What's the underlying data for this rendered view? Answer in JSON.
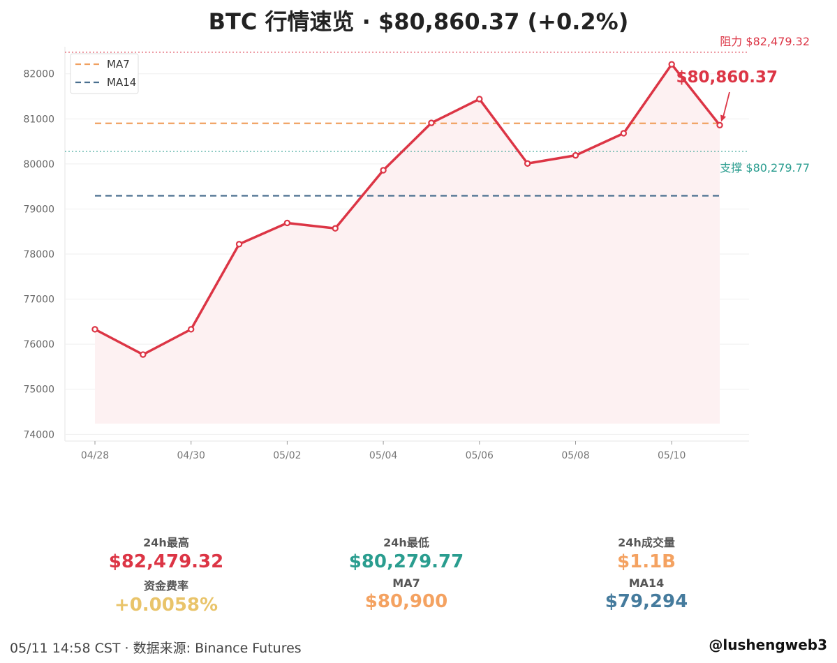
{
  "header": {
    "title": "BTC 行情速览 · $80,860.37 (+0.2%)"
  },
  "chart_data": {
    "type": "line",
    "x": [
      "04/28",
      "04/29",
      "04/30",
      "05/01",
      "05/02",
      "05/03",
      "05/04",
      "05/05",
      "05/06",
      "05/07",
      "05/08",
      "05/09",
      "05/10",
      "05/11"
    ],
    "x_ticks": [
      "04/28",
      "04/30",
      "05/02",
      "05/04",
      "05/06",
      "05/08",
      "05/10"
    ],
    "series": [
      {
        "values": [
          76330,
          75770,
          76330,
          78220,
          78690,
          78570,
          79860,
          80910,
          81440,
          80010,
          80190,
          80680,
          82210,
          80860
        ],
        "color": "#dc3545"
      }
    ],
    "reference_lines": [
      {
        "name": "MA7",
        "value": 80900,
        "color": "#f0a060",
        "style": "dashed"
      },
      {
        "name": "MA14",
        "value": 79294,
        "color": "#4a6f8f",
        "style": "dashed"
      }
    ],
    "levels": [
      {
        "label": "阻力 $82,479.32",
        "value": 82479.32,
        "color": "#dc3545"
      },
      {
        "label": "支撑 $80,279.77",
        "value": 80279.77,
        "color": "#2a9d8f"
      }
    ],
    "annotation": {
      "text": "$80,860.37",
      "x": "05/11",
      "value": 80860.37,
      "color": "#dc3545"
    },
    "ylim": [
      73850,
      82600
    ],
    "yticks": [
      74000,
      75000,
      76000,
      77000,
      78000,
      79000,
      80000,
      81000,
      82000
    ],
    "grid": true,
    "legend_placement": "top-left",
    "legend": [
      "MA7",
      "MA14"
    ]
  },
  "stats": [
    {
      "label": "24h最高",
      "value": "$82,479.32",
      "color": "#dc3545"
    },
    {
      "label": "24h最低",
      "value": "$80,279.77",
      "color": "#2a9d8f"
    },
    {
      "label": "24h成交量",
      "value": "$1.1B",
      "color": "#f4a261"
    },
    {
      "label": "资金费率",
      "value": "+0.0058%",
      "color": "#e9c46a"
    },
    {
      "label": "MA7",
      "value": "$80,900",
      "color": "#f4a261"
    },
    {
      "label": "MA14",
      "value": "$79,294",
      "color": "#457b9d"
    }
  ],
  "footer": {
    "left": "05/11 14:58 CST · 数据来源: Binance Futures",
    "right": "@lushengweb3"
  }
}
